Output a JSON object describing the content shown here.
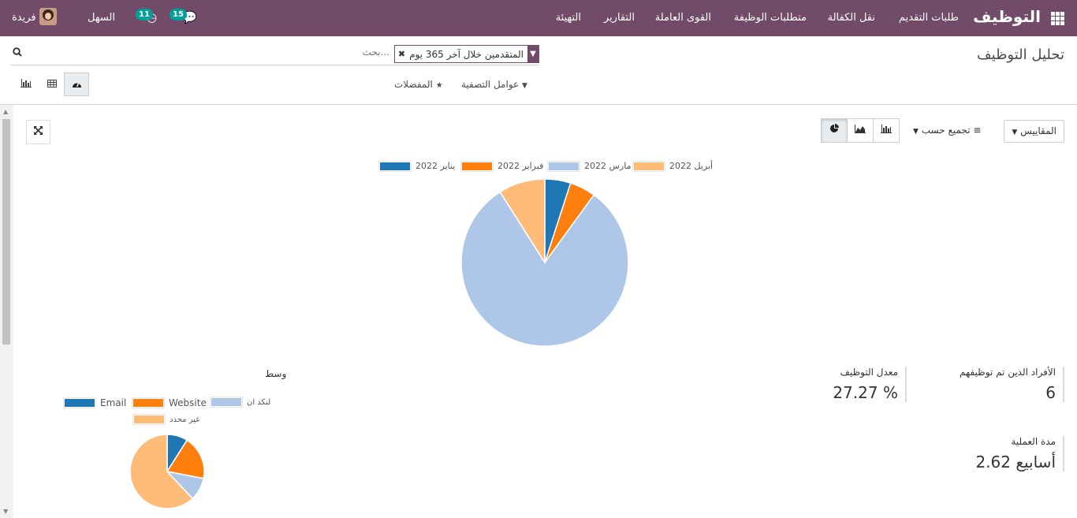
{
  "navbar": {
    "brand": "التوظيف",
    "menu": [
      "طلبات التقديم",
      "نقل الكفالة",
      "متطلبات الوظيفة",
      "القوى العاملة",
      "التقارير",
      "التهيئة"
    ],
    "company": "السهل",
    "user": "فريدة",
    "messages_count": "15",
    "activities_count": "11",
    "colors": {
      "bar": "#714b67",
      "badge": "#00a09d"
    }
  },
  "control_panel": {
    "title": "تحليل التوظيف",
    "search_placeholder": "بحث...",
    "facet": "المتقدمين خلال آخر 365 يوم",
    "filters_label": "عوامل التصفية",
    "favorites_label": "المفضلات",
    "views": [
      "dashboard-icon",
      "table-icon",
      "bar-chart-icon"
    ]
  },
  "graph_controls": {
    "measures_label": "المقاييس",
    "groupby_label": "تجميع حسب",
    "chart_types": [
      "bar-chart-icon",
      "area-chart-icon",
      "pie-chart-icon"
    ]
  },
  "chart_data": [
    {
      "type": "pie",
      "categories": [
        "يناير 2022",
        "فبراير 2022",
        "مارس 2022",
        "أبريل 2022"
      ],
      "values": [
        5,
        5,
        81,
        9
      ],
      "colors": [
        "#1f77b4",
        "#ff7f0e",
        "#aec7e8",
        "#ffbb78"
      ],
      "legend": "top"
    },
    {
      "type": "pie",
      "title": "وسط",
      "categories": [
        "Email",
        "Website",
        "لنكد ان",
        "غير محدد"
      ],
      "values": [
        9,
        19,
        10,
        62
      ],
      "colors": [
        "#1f77b4",
        "#ff7f0e",
        "#aec7e8",
        "#ffbb78"
      ],
      "legend": "top"
    }
  ],
  "kpis": [
    {
      "label": "الأفراد الذين تم توظيفهم",
      "value": "6"
    },
    {
      "label": "معدل التوظيف",
      "value": "27.27 %"
    },
    {
      "label": "مدة العملية",
      "value": "2.62 أسابيع"
    }
  ]
}
